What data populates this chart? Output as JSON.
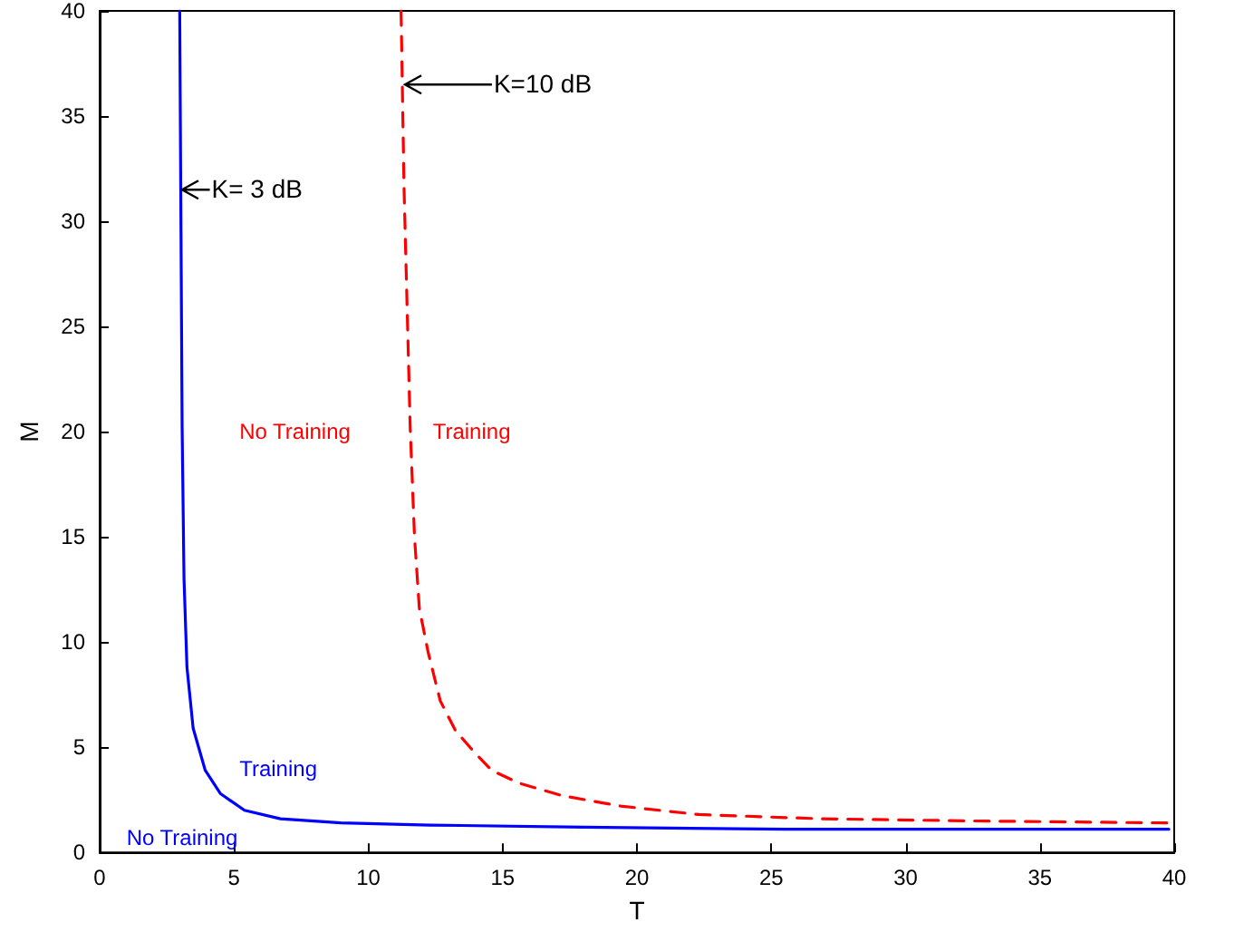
{
  "chart_data": {
    "type": "line",
    "xlabel": "T",
    "ylabel": "M",
    "xlim": [
      0,
      40
    ],
    "ylim": [
      0,
      40
    ],
    "xticks": [
      0,
      5,
      10,
      15,
      20,
      25,
      30,
      35,
      40
    ],
    "yticks": [
      0,
      5,
      10,
      15,
      20,
      25,
      30,
      35,
      40
    ],
    "grid": false,
    "marker": "none",
    "series": [
      {
        "color": "#0000ff",
        "line_style": "solid",
        "x": [
          2.98,
          3.07,
          3.14,
          3.25,
          3.48,
          3.93,
          4.49,
          5.39,
          6.73,
          8.98,
          12.3,
          18,
          25.5,
          32,
          39.8
        ],
        "values": [
          40,
          20.2,
          13,
          8.8,
          5.9,
          3.9,
          2.8,
          2,
          1.6,
          1.4,
          1.3,
          1.2,
          1.1,
          1.1,
          1.1
        ]
      },
      {
        "color": "#ff0000",
        "line_style": "dashed",
        "x": [
          11.22,
          11.33,
          11.56,
          11.72,
          11.9,
          12.23,
          12.68,
          13.24,
          13.92,
          14.59,
          15.6,
          17.2,
          19.4,
          22.3,
          26.8,
          32.2,
          39.8
        ],
        "values": [
          40,
          31.6,
          20.2,
          15,
          11.6,
          9.5,
          7.2,
          5.8,
          4.8,
          3.9,
          3.3,
          2.7,
          2.2,
          1.8,
          1.6,
          1.5,
          1.4
        ]
      }
    ],
    "annotations": [
      {
        "text": "K= 3 dB",
        "x": 3,
        "y": 31.5
      },
      {
        "text": "K=10 dB",
        "x": 11.3,
        "y": 36.5
      },
      "No Training",
      "Training",
      "Training",
      "No Training"
    ]
  }
}
